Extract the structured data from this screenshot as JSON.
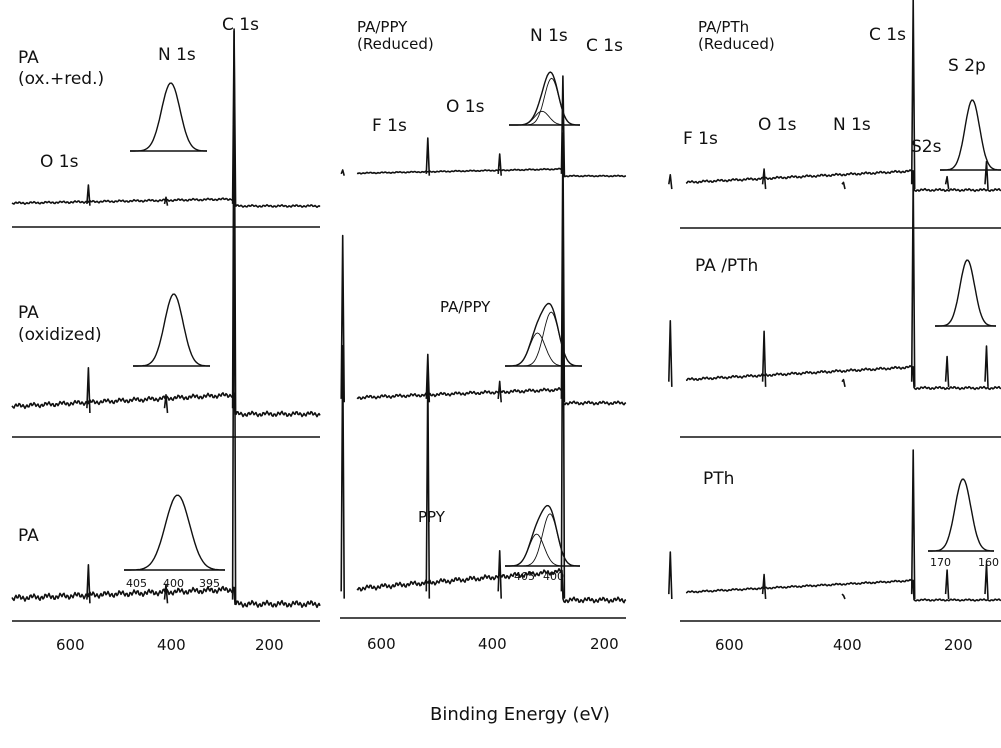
{
  "xlabel": "Binding Energy (eV)",
  "chart_data": [
    {
      "type": "line",
      "column": "left",
      "xlim": [
        660,
        140
      ],
      "x_ticks": [
        600,
        400,
        200
      ],
      "panels": [
        {
          "label_lines": [
            "PA",
            "(ox.+red.)"
          ],
          "peak_labels": [
            "O 1s",
            "N 1s",
            "C 1s"
          ],
          "peaks": [
            {
              "be": 531,
              "h": 0.12
            },
            {
              "be": 400,
              "h": 0.05
            },
            {
              "be": 285,
              "h": 1.0
            }
          ],
          "plateau": 0.04,
          "inset": {
            "range": [
              408,
              392
            ],
            "ticks": [],
            "components": []
          }
        },
        {
          "label_lines": [
            "PA",
            "(oxidized)"
          ],
          "peak_labels": [],
          "peaks": [
            {
              "be": 531,
              "h": 0.12
            },
            {
              "be": 400,
              "h": 0.05
            },
            {
              "be": 285,
              "h": 1.0
            }
          ],
          "plateau": 0.05,
          "inset": {
            "range": [
              408,
              392
            ],
            "ticks": [],
            "components": []
          }
        },
        {
          "label_lines": [
            "PA"
          ],
          "peak_labels": [],
          "peaks": [
            {
              "be": 531,
              "h": 0.08
            },
            {
              "be": 400,
              "h": 0.04
            },
            {
              "be": 285,
              "h": 1.0
            }
          ],
          "plateau": 0.03,
          "inset": {
            "range": [
              408,
              392
            ],
            "ticks": [
              405,
              400,
              395
            ],
            "components": []
          }
        }
      ]
    },
    {
      "type": "line",
      "column": "middle",
      "xlim": [
        660,
        170
      ],
      "x_ticks": [
        600,
        400,
        200
      ],
      "panels": [
        {
          "label_lines": [
            "PA/PPY",
            "(Reduced)"
          ],
          "peak_labels": [
            "F 1s",
            "O 1s",
            "N 1s",
            "C 1s"
          ],
          "peaks": [
            {
              "be": 686,
              "h": 0.06
            },
            {
              "be": 531,
              "h": 0.38
            },
            {
              "be": 400,
              "h": 0.22
            },
            {
              "be": 285,
              "h": 1.0
            }
          ],
          "plateau": 0.07,
          "inset": {
            "range": [
              408,
              394
            ],
            "ticks": [],
            "components": [
              {
                "center": 401.5,
                "h": 0.25
              },
              {
                "center": 399.6,
                "h": 0.85
              }
            ]
          }
        },
        {
          "label_lines": [
            "PA/PPY"
          ],
          "peak_labels": [],
          "peaks": [
            {
              "be": 686,
              "h": 0.62
            },
            {
              "be": 531,
              "h": 0.18
            },
            {
              "be": 400,
              "h": 0.08
            },
            {
              "be": 285,
              "h": 1.0
            }
          ],
          "plateau": 0.05,
          "inset": {
            "range": [
              408,
              394
            ],
            "ticks": [],
            "components": [
              {
                "center": 402.1,
                "h": 0.55
              },
              {
                "center": 399.6,
                "h": 0.9
              }
            ]
          }
        },
        {
          "label_lines": [
            "PPY"
          ],
          "peak_labels": [],
          "peaks": [
            {
              "be": 686,
              "h": 0.62
            },
            {
              "be": 531,
              "h": 0.55
            },
            {
              "be": 400,
              "h": 0.12
            },
            {
              "be": 285,
              "h": 1.0
            }
          ],
          "plateau": 0.07,
          "inset": {
            "range": [
              408,
              394
            ],
            "ticks": [
              405,
              400
            ],
            "components": [
              {
                "center": 402.1,
                "h": 0.55
              },
              {
                "center": 399.6,
                "h": 0.9
              }
            ]
          }
        }
      ]
    },
    {
      "type": "line",
      "column": "right",
      "xlim": [
        660,
        140
      ],
      "x_ticks": [
        600,
        400,
        200
      ],
      "panels": [
        {
          "label_lines": [
            "PA/PTh",
            "(Reduced)"
          ],
          "peak_labels": [
            "F 1s",
            "O 1s",
            "N 1s",
            "C 1s",
            "S2s",
            "S 2p"
          ],
          "peaks": [
            {
              "be": 686,
              "h": 0.08
            },
            {
              "be": 531,
              "h": 0.11
            },
            {
              "be": 400,
              "h": 0.04
            },
            {
              "be": 285,
              "h": 1.0
            },
            {
              "be": 229,
              "h": 0.07
            },
            {
              "be": 164,
              "h": 0.15
            }
          ],
          "plateau": 0.1,
          "inset": {
            "range": [
              174,
              156
            ],
            "ticks": [],
            "components": []
          }
        },
        {
          "label_lines": [
            "PA /PTh"
          ],
          "peak_labels": [],
          "peaks": [
            {
              "be": 686,
              "h": 0.32
            },
            {
              "be": 531,
              "h": 0.27
            },
            {
              "be": 400,
              "h": 0.04
            },
            {
              "be": 285,
              "h": 1.0
            },
            {
              "be": 229,
              "h": 0.15
            },
            {
              "be": 164,
              "h": 0.2
            }
          ],
          "plateau": 0.1,
          "inset": {
            "range": [
              174,
              156
            ],
            "ticks": [],
            "components": []
          }
        },
        {
          "label_lines": [
            "PTh"
          ],
          "peak_labels": [],
          "peaks": [
            {
              "be": 686,
              "h": 0.32
            },
            {
              "be": 531,
              "h": 0.17
            },
            {
              "be": 400,
              "h": 0.03
            },
            {
              "be": 285,
              "h": 1.0
            },
            {
              "be": 229,
              "h": 0.2
            },
            {
              "be": 164,
              "h": 0.24
            }
          ],
          "plateau": 0.13,
          "inset": {
            "range": [
              174,
              156
            ],
            "ticks": [
              170,
              160
            ],
            "components": []
          }
        }
      ]
    }
  ]
}
